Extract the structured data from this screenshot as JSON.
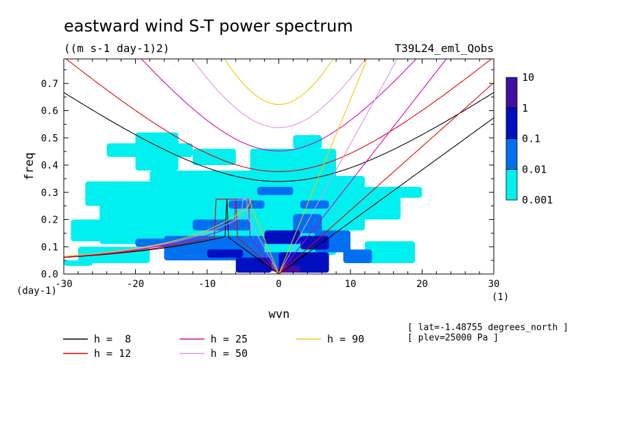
{
  "chart_data": {
    "type": "heatmap",
    "title": "eastward wind S-T power spectrum",
    "subtitle": "((m s-1 day-1)2)",
    "run_label": "T39L24_eml_Qobs",
    "xlabel": "wvn",
    "ylabel": "freq",
    "x_unit_label": "(1)",
    "y_unit_label": "(day-1)",
    "xlim": [
      -30,
      30
    ],
    "ylim": [
      0,
      0.79
    ],
    "xticks": [
      -30,
      -20,
      -10,
      0,
      10,
      20,
      30
    ],
    "xtick_labels": [
      "-30",
      "-20",
      "-10",
      "0",
      "10",
      "20",
      "30"
    ],
    "yticks": [
      0,
      0.1,
      0.2,
      0.3,
      0.4,
      0.5,
      0.6,
      0.7
    ],
    "ytick_labels": [
      "0.0",
      "0.1",
      "0.2",
      "0.3",
      "0.4",
      "0.5",
      "0.6",
      "0.7"
    ],
    "colorbar": {
      "levels": [
        0.001,
        0.01,
        0.1,
        1,
        10
      ],
      "labels": [
        "0.001",
        "0.01",
        "0.1",
        "1",
        "10"
      ],
      "colors": [
        "#00f0f0",
        "#0070f0",
        "#0010c0",
        "#4010a0"
      ]
    },
    "info": [
      "[ lat=-1.48755 degrees_north ]",
      "[ plev=25000 Pa ]"
    ],
    "dispersion_curves": [
      {
        "label": "h =  8",
        "h": 8,
        "color": "#000000"
      },
      {
        "label": "h = 12",
        "h": 12,
        "color": "#e00000"
      },
      {
        "label": "h = 25",
        "h": 25,
        "color": "#d000c0"
      },
      {
        "label": "h = 50",
        "h": 50,
        "color": "#e090e0"
      },
      {
        "label": "h = 90",
        "h": 90,
        "color": "#f0c800"
      }
    ],
    "power_regions": [
      {
        "level": 0.001,
        "cells": [
          [
            -28,
            -18,
            0.04,
            0.1
          ],
          [
            -25,
            -2,
            0.11,
            0.34
          ],
          [
            -29,
            -12,
            0.12,
            0.2
          ],
          [
            -18,
            2,
            0.2,
            0.38
          ],
          [
            -27,
            -20,
            0.25,
            0.34
          ],
          [
            -20,
            -14,
            0.38,
            0.52
          ],
          [
            -12,
            -6,
            0.4,
            0.46
          ],
          [
            -6,
            8,
            0.07,
            0.34
          ],
          [
            -4,
            8,
            0.34,
            0.46
          ],
          [
            6,
            12,
            0.16,
            0.36
          ],
          [
            9,
            17,
            0.2,
            0.32
          ],
          [
            12,
            19,
            0.04,
            0.12
          ],
          [
            15,
            20,
            0.28,
            0.32
          ],
          [
            -30,
            -26,
            0.03,
            0.05
          ],
          [
            -24,
            -12,
            0.43,
            0.48
          ],
          [
            2,
            6,
            0.46,
            0.51
          ]
        ]
      },
      {
        "level": 0.01,
        "cells": [
          [
            -16,
            -2,
            0.05,
            0.14
          ],
          [
            -12,
            -4,
            0.16,
            0.2
          ],
          [
            -7,
            -2,
            0.24,
            0.27
          ],
          [
            -3,
            2,
            0.29,
            0.32
          ],
          [
            -5,
            3,
            0.01,
            0.08
          ],
          [
            2,
            6,
            0.15,
            0.22
          ],
          [
            5,
            10,
            0.08,
            0.16
          ],
          [
            9,
            13,
            0.04,
            0.09
          ],
          [
            -20,
            -15,
            0.1,
            0.13
          ],
          [
            3,
            7,
            0.24,
            0.27
          ]
        ]
      },
      {
        "level": 0.1,
        "cells": [
          [
            -6,
            -1,
            0.005,
            0.06
          ],
          [
            0,
            7,
            0.005,
            0.08
          ],
          [
            3,
            7,
            0.09,
            0.14
          ],
          [
            -10,
            -5,
            0.06,
            0.09
          ],
          [
            -2,
            3,
            0.11,
            0.16
          ]
        ]
      },
      {
        "level": 1,
        "cells": [
          [
            0,
            3,
            0.005,
            0.03
          ]
        ]
      }
    ]
  }
}
